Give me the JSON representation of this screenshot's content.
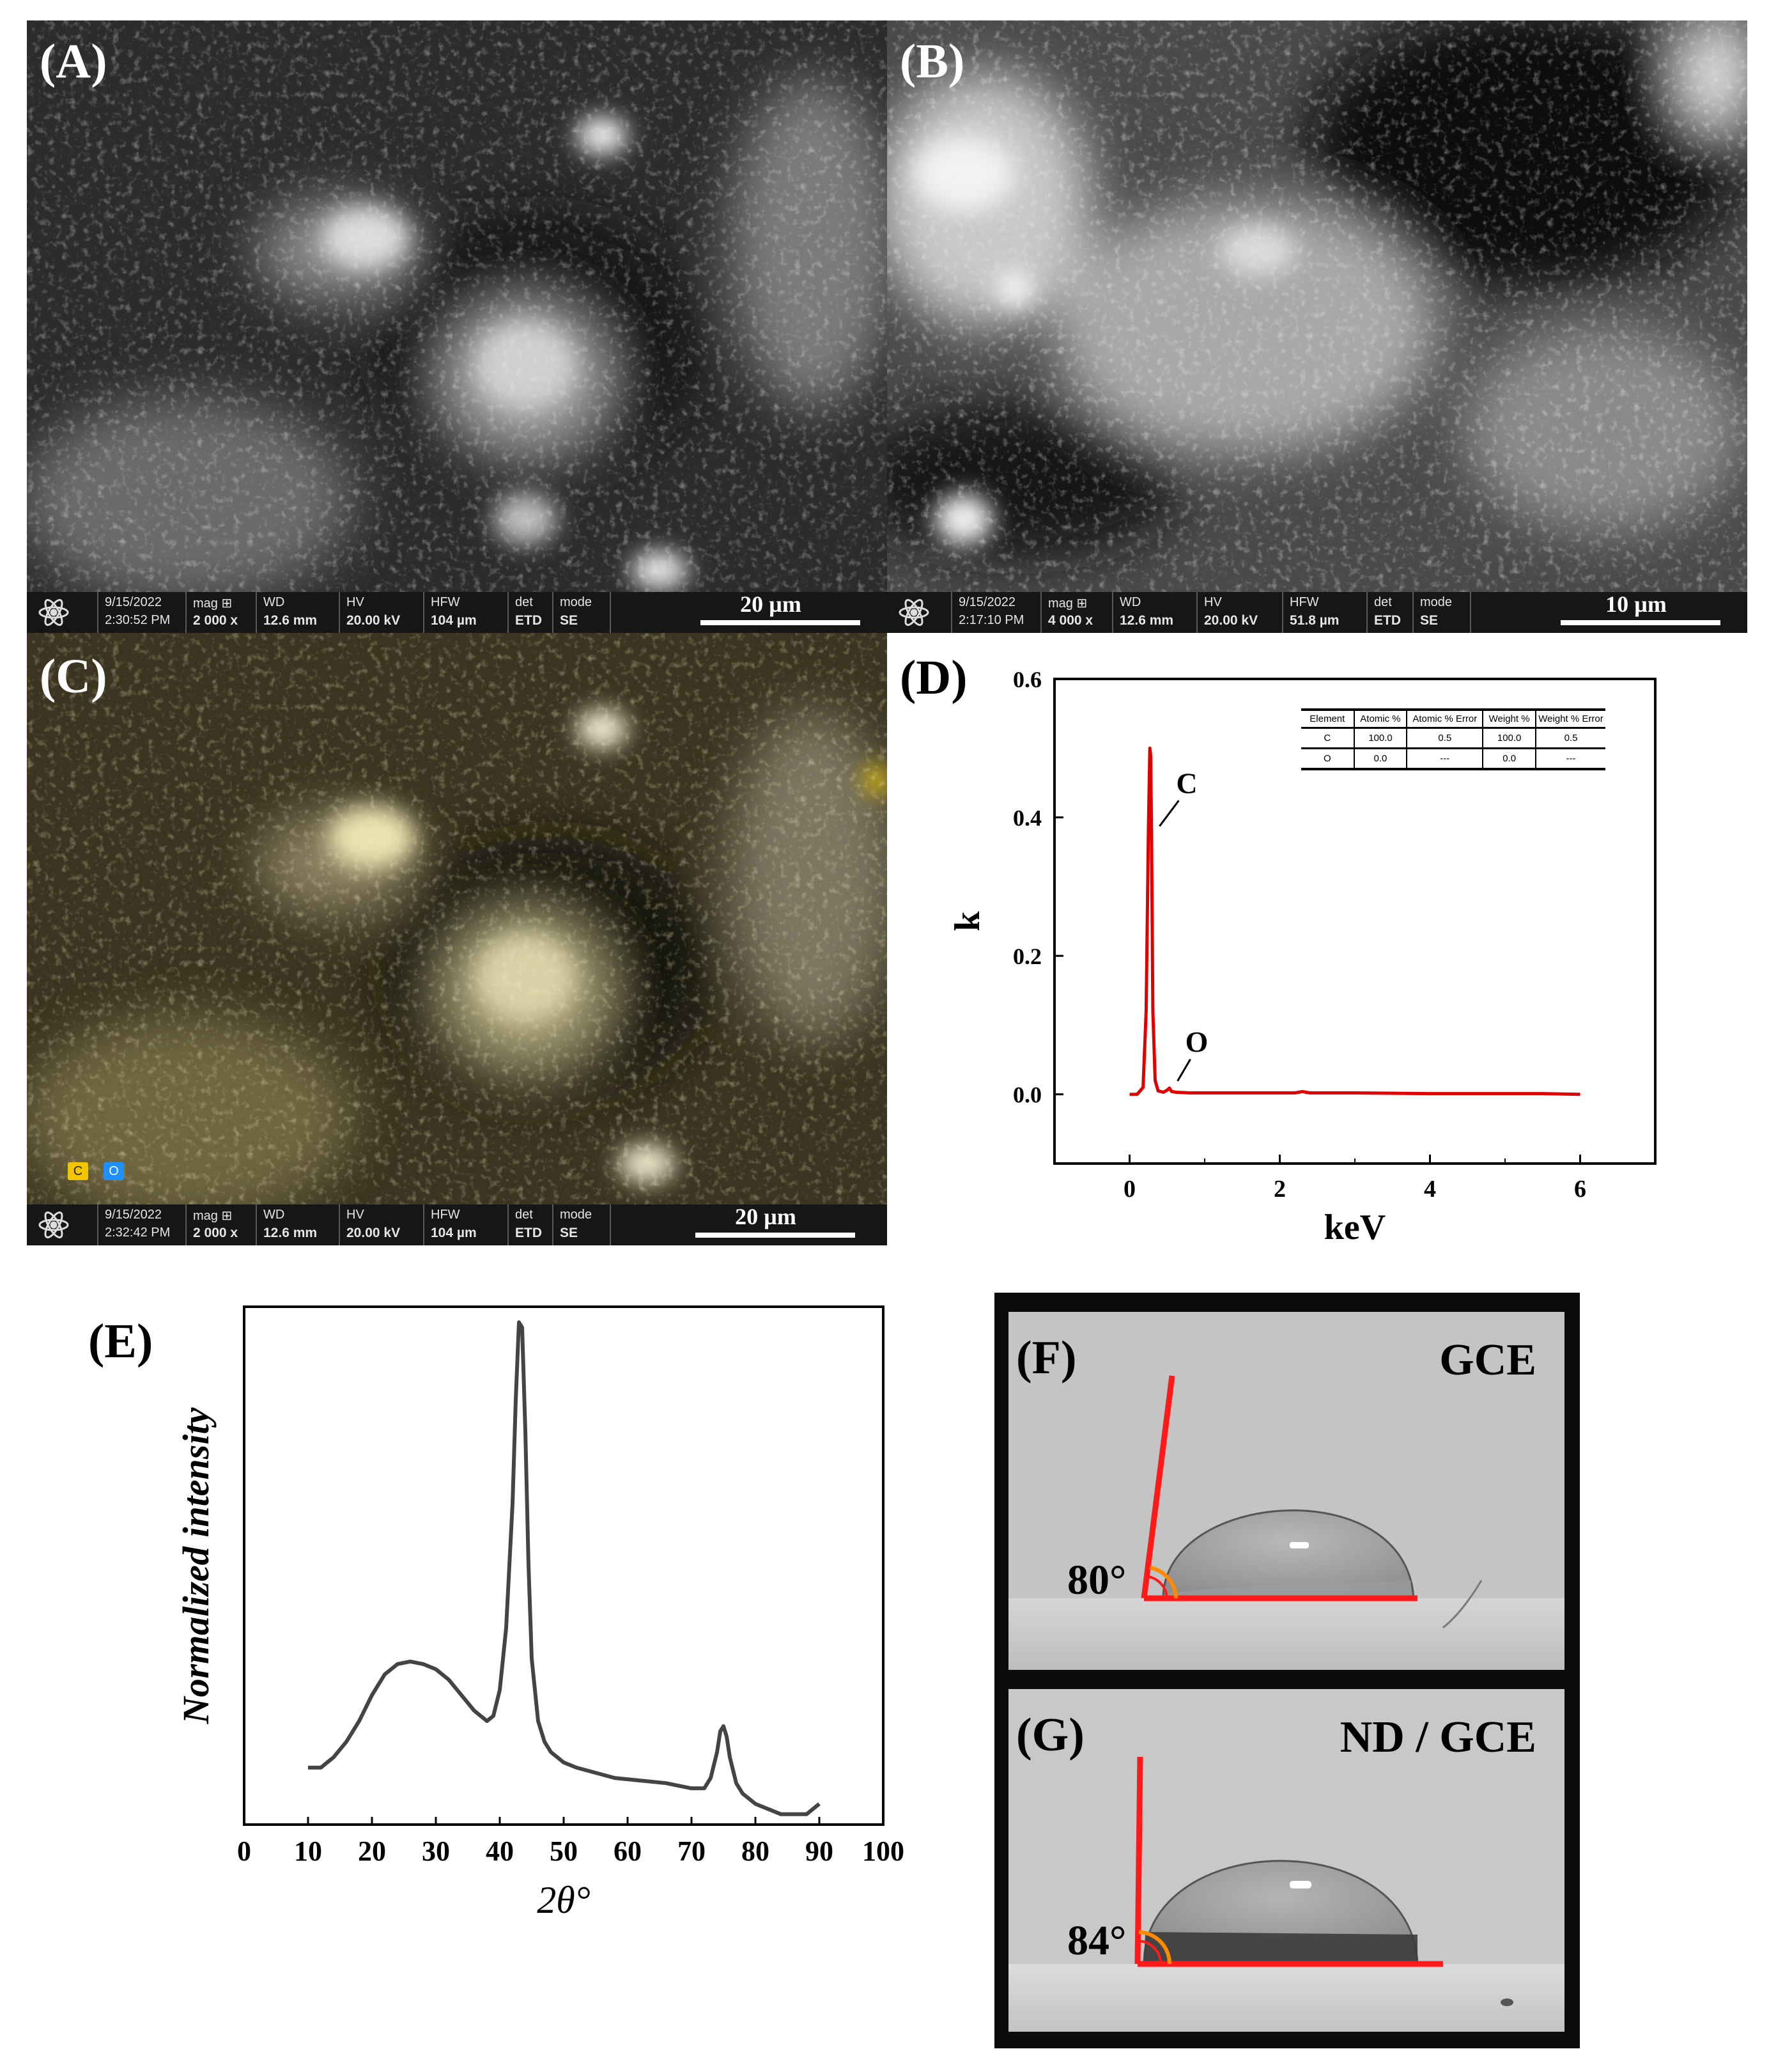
{
  "panels": {
    "A": {
      "label": "(A)"
    },
    "B": {
      "label": "(B)"
    },
    "C": {
      "label": "(C)"
    },
    "D": {
      "label": "(D)"
    },
    "E": {
      "label": "(E)"
    },
    "F": {
      "label": "(F)"
    },
    "G": {
      "label": "(G)"
    }
  },
  "sem_A": {
    "date": "9/15/2022",
    "time": "2:30:52 PM",
    "mag_label": "mag ⊞",
    "mag": "2 000 x",
    "wd_label": "WD",
    "wd": "12.6 mm",
    "hv_label": "HV",
    "hv": "20.00 kV",
    "hfw_label": "HFW",
    "hfw": "104 µm",
    "det_label": "det",
    "det": "ETD",
    "mode_label": "mode",
    "mode": "SE",
    "scale": "20 µm"
  },
  "sem_B": {
    "date": "9/15/2022",
    "time": "2:17:10 PM",
    "mag_label": "mag ⊞",
    "mag": "4 000 x",
    "wd_label": "WD",
    "wd": "12.6 mm",
    "hv_label": "HV",
    "hv": "20.00 kV",
    "hfw_label": "HFW",
    "hfw": "51.8 µm",
    "det_label": "det",
    "det": "ETD",
    "mode_label": "mode",
    "mode": "SE",
    "scale": "10 µm"
  },
  "sem_C": {
    "date": "9/15/2022",
    "time": "2:32:42 PM",
    "mag_label": "mag ⊞",
    "mag": "2 000 x",
    "wd_label": "WD",
    "wd": "12.6 mm",
    "hv_label": "HV",
    "hv": "20.00 kV",
    "hfw_label": "HFW",
    "hfw": "104 µm",
    "det_label": "det",
    "det": "ETD",
    "mode_label": "mode",
    "mode": "SE",
    "scale": "20 µm",
    "map_legend": [
      {
        "text": "C",
        "color": "#f2c500"
      },
      {
        "text": "O",
        "color": "#1e90ff"
      }
    ]
  },
  "edx_table": {
    "headers": [
      "Element",
      "Atomic %",
      "Atomic % Error",
      "Weight %",
      "Weight % Error"
    ],
    "rows": [
      [
        "C",
        "100.0",
        "0.5",
        "100.0",
        "0.5"
      ],
      [
        "O",
        "0.0",
        "---",
        "0.0",
        "---"
      ]
    ]
  },
  "wetting": {
    "F": {
      "surface": "GCE",
      "angle": "80°",
      "angle_value": 80
    },
    "G": {
      "surface": "ND / GCE",
      "angle": "84°",
      "angle_value": 84
    }
  },
  "chart_data": [
    {
      "panel": "D",
      "type": "line",
      "xlabel": "keV",
      "ylabel": "k",
      "xlim": [
        -1,
        7
      ],
      "ylim": [
        -0.1,
        0.6
      ],
      "xticks": [
        0,
        2,
        4,
        6
      ],
      "yticks": [
        0.0,
        0.2,
        0.4,
        0.6
      ],
      "ytick_labels": [
        "0.0",
        "0.2",
        "0.4",
        "0.6"
      ],
      "line_color": "#e00000",
      "annotations": [
        {
          "text": "C",
          "x": 0.28,
          "y": 0.5
        },
        {
          "text": "O",
          "x": 0.52,
          "y": 0.01
        }
      ],
      "x": [
        0.0,
        0.1,
        0.18,
        0.22,
        0.25,
        0.27,
        0.28,
        0.29,
        0.31,
        0.34,
        0.38,
        0.45,
        0.5,
        0.53,
        0.56,
        0.62,
        0.8,
        1.5,
        2.2,
        2.3,
        2.4,
        3.0,
        4.0,
        5.0,
        5.5,
        6.0
      ],
      "y": [
        0.0,
        0.0,
        0.01,
        0.12,
        0.38,
        0.5,
        0.49,
        0.4,
        0.12,
        0.02,
        0.005,
        0.003,
        0.006,
        0.009,
        0.004,
        0.003,
        0.002,
        0.002,
        0.002,
        0.004,
        0.002,
        0.002,
        0.001,
        0.001,
        0.001,
        0.0
      ]
    },
    {
      "panel": "E",
      "type": "line",
      "xlabel": "2θ°",
      "ylabel": "Normalized intensity",
      "xlim": [
        0,
        100
      ],
      "ylim": [
        0,
        1
      ],
      "xticks": [
        0,
        10,
        20,
        30,
        40,
        50,
        60,
        70,
        80,
        90,
        100
      ],
      "line_color": "#444444",
      "x": [
        10,
        12,
        14,
        16,
        18,
        20,
        22,
        24,
        26,
        28,
        30,
        32,
        34,
        36,
        38,
        39,
        40,
        41,
        42,
        42.5,
        43,
        43.5,
        44,
        44.5,
        45,
        46,
        47,
        48,
        50,
        52,
        55,
        58,
        62,
        66,
        70,
        72,
        73,
        74,
        74.5,
        75,
        75.5,
        76,
        77,
        78,
        80,
        82,
        84,
        86,
        88,
        90
      ],
      "y": [
        0.11,
        0.11,
        0.13,
        0.16,
        0.2,
        0.25,
        0.29,
        0.31,
        0.315,
        0.31,
        0.3,
        0.28,
        0.25,
        0.22,
        0.2,
        0.21,
        0.26,
        0.38,
        0.62,
        0.82,
        0.97,
        0.96,
        0.76,
        0.5,
        0.32,
        0.2,
        0.16,
        0.14,
        0.12,
        0.11,
        0.1,
        0.09,
        0.085,
        0.08,
        0.07,
        0.07,
        0.09,
        0.14,
        0.18,
        0.19,
        0.17,
        0.13,
        0.08,
        0.06,
        0.04,
        0.03,
        0.02,
        0.02,
        0.02,
        0.04
      ]
    }
  ]
}
